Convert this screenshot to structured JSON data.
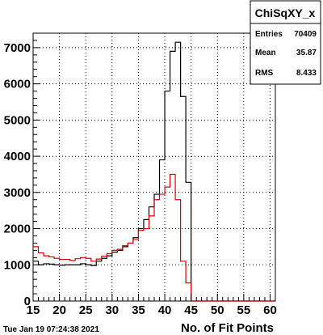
{
  "timestamp": "Tue Jan 19 07:24:38 2021",
  "stats_box": {
    "title": "ChiSqXY_x",
    "rows": [
      {
        "label": "Entries",
        "value": "70409"
      },
      {
        "label": "Mean",
        "value": "35.87"
      },
      {
        "label": "RMS",
        "value": "8.433"
      }
    ]
  },
  "chart_data": {
    "type": "line",
    "style": "step-histogram",
    "title": "",
    "xlabel": "No. of Fit Points",
    "ylabel": "",
    "xlim": [
      15,
      61
    ],
    "ylim": [
      0,
      7400
    ],
    "bin_width": 1,
    "bin_start": 15,
    "xticks": [
      15,
      20,
      25,
      30,
      35,
      40,
      45,
      50,
      55,
      60
    ],
    "yticks": [
      0,
      1000,
      2000,
      3000,
      4000,
      5000,
      6000,
      7000
    ],
    "grid": true,
    "legend": "none",
    "series": [
      {
        "color": "#000000",
        "values": [
          1100,
          1000,
          1030,
          1020,
          1000,
          990,
          1000,
          1000,
          1000,
          1030,
          1000,
          980,
          1100,
          1180,
          1250,
          1350,
          1400,
          1500,
          1600,
          1750,
          2000,
          2250,
          2600,
          2950,
          3900,
          5800,
          6900,
          7150,
          5650,
          3280,
          0,
          0,
          0,
          0,
          0,
          0,
          0,
          0,
          0,
          0,
          0,
          0,
          0,
          0,
          0,
          0
        ]
      },
      {
        "color": "#dd0000",
        "values": [
          1500,
          1330,
          1250,
          1220,
          1180,
          1150,
          1150,
          1120,
          1170,
          1200,
          1180,
          1100,
          1160,
          1240,
          1310,
          1400,
          1430,
          1530,
          1600,
          1700,
          1950,
          2000,
          2350,
          2800,
          2950,
          3150,
          3500,
          2800,
          1100,
          500,
          0,
          0,
          0,
          0,
          0,
          0,
          0,
          0,
          0,
          0,
          0,
          0,
          0,
          0,
          0,
          0
        ]
      }
    ]
  }
}
